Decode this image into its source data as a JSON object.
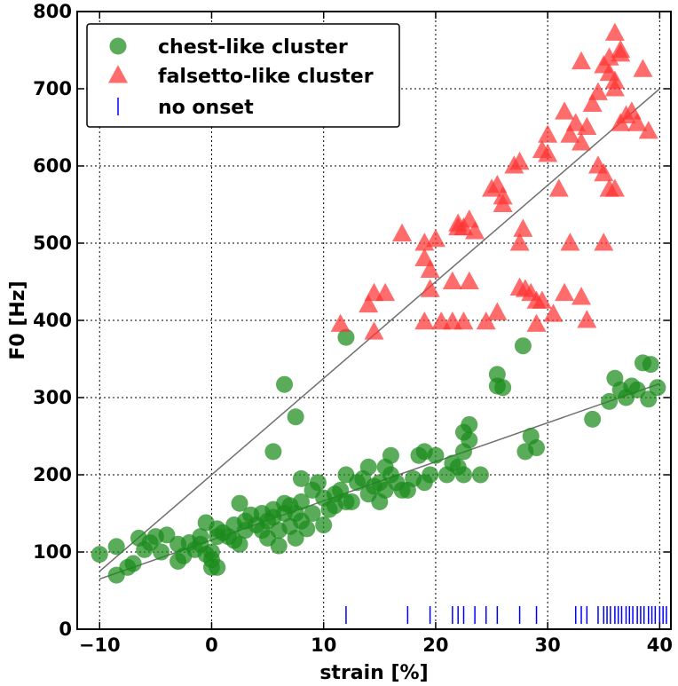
{
  "chart_data": {
    "type": "scatter",
    "xlabel": "strain [%]",
    "ylabel": "F0 [Hz]",
    "xlim": [
      -12,
      41
    ],
    "ylim": [
      0,
      800
    ],
    "xticks": [
      -10,
      0,
      10,
      20,
      30,
      40
    ],
    "yticks": [
      0,
      100,
      200,
      300,
      400,
      500,
      600,
      700,
      800
    ],
    "grid": true,
    "legend_position": "top-left",
    "series": [
      {
        "name": "chest-like cluster",
        "marker": "circle",
        "color": "#1a8a1a",
        "points": [
          [
            -10,
            97
          ],
          [
            -8.5,
            107
          ],
          [
            -8.5,
            70
          ],
          [
            -7.5,
            80
          ],
          [
            -7,
            85
          ],
          [
            -6.5,
            118
          ],
          [
            -6,
            103
          ],
          [
            -5.5,
            112
          ],
          [
            -5,
            120
          ],
          [
            -4.5,
            100
          ],
          [
            -4,
            122
          ],
          [
            -3,
            88
          ],
          [
            -3,
            110
          ],
          [
            -2.5,
            95
          ],
          [
            -2,
            112
          ],
          [
            -1.5,
            103
          ],
          [
            -1,
            110
          ],
          [
            -1,
            120
          ],
          [
            -0.5,
            97
          ],
          [
            -0.5,
            138
          ],
          [
            0,
            80
          ],
          [
            0,
            90
          ],
          [
            0,
            100
          ],
          [
            0.5,
            120
          ],
          [
            0.5,
            130
          ],
          [
            0.5,
            80
          ],
          [
            1,
            125
          ],
          [
            1.5,
            120
          ],
          [
            2,
            115
          ],
          [
            2,
            135
          ],
          [
            2.5,
            163
          ],
          [
            2.5,
            110
          ],
          [
            3,
            128
          ],
          [
            3,
            140
          ],
          [
            3.5,
            148
          ],
          [
            4,
            135
          ],
          [
            4.5,
            128
          ],
          [
            4.5,
            150
          ],
          [
            5,
            118
          ],
          [
            5,
            140
          ],
          [
            5.5,
            145
          ],
          [
            5.5,
            155
          ],
          [
            6,
            108
          ],
          [
            6,
            128
          ],
          [
            6.5,
            150
          ],
          [
            6.5,
            163
          ],
          [
            6.5,
            317
          ],
          [
            7,
            133
          ],
          [
            7,
            160
          ],
          [
            7.5,
            118
          ],
          [
            7.5,
            150
          ],
          [
            7.5,
            275
          ],
          [
            8,
            140
          ],
          [
            8,
            165
          ],
          [
            8,
            195
          ],
          [
            8.5,
            130
          ],
          [
            9,
            150
          ],
          [
            9,
            180
          ],
          [
            9.5,
            190
          ],
          [
            10,
            135
          ],
          [
            10,
            170
          ],
          [
            10.5,
            155
          ],
          [
            11,
            160
          ],
          [
            11,
            175
          ],
          [
            11.5,
            180
          ],
          [
            12,
            165
          ],
          [
            12,
            200
          ],
          [
            12,
            378
          ],
          [
            12.5,
            165
          ],
          [
            13,
            190
          ],
          [
            13.5,
            195
          ],
          [
            14,
            175
          ],
          [
            14,
            210
          ],
          [
            14.5,
            185
          ],
          [
            15,
            165
          ],
          [
            15,
            190
          ],
          [
            15.5,
            180
          ],
          [
            15.5,
            210
          ],
          [
            16,
            200
          ],
          [
            16,
            225
          ],
          [
            16.5,
            190
          ],
          [
            17,
            180
          ],
          [
            17.5,
            180
          ],
          [
            18,
            195
          ],
          [
            18.5,
            225
          ],
          [
            19,
            190
          ],
          [
            19,
            230
          ],
          [
            19.5,
            200
          ],
          [
            20,
            225
          ],
          [
            21,
            200
          ],
          [
            21.5,
            215
          ],
          [
            22,
            210
          ],
          [
            22.5,
            230
          ],
          [
            22.5,
            200
          ],
          [
            22.5,
            255
          ],
          [
            23,
            245
          ],
          [
            23,
            265
          ],
          [
            24,
            200
          ],
          [
            25.5,
            315
          ],
          [
            25.5,
            330
          ],
          [
            26,
            313
          ],
          [
            5.5,
            230
          ],
          [
            27.8,
            367
          ],
          [
            28,
            230
          ],
          [
            28.5,
            250
          ],
          [
            29,
            235
          ],
          [
            34,
            272
          ],
          [
            35.5,
            295
          ],
          [
            36,
            325
          ],
          [
            36.5,
            310
          ],
          [
            37,
            300
          ],
          [
            37.5,
            315
          ],
          [
            38,
            310
          ],
          [
            38.5,
            345
          ],
          [
            39,
            298
          ],
          [
            39.2,
            343
          ],
          [
            39.8,
            313
          ]
        ]
      },
      {
        "name": "falsetto-like cluster",
        "marker": "triangle",
        "color": "#ff3333",
        "points": [
          [
            11.5,
            395
          ],
          [
            14,
            420
          ],
          [
            14.5,
            385
          ],
          [
            14.5,
            435
          ],
          [
            15.5,
            435
          ],
          [
            17,
            512
          ],
          [
            19,
            398
          ],
          [
            19,
            480
          ],
          [
            19,
            500
          ],
          [
            19.5,
            465
          ],
          [
            19.5,
            440
          ],
          [
            20,
            505
          ],
          [
            20.5,
            398
          ],
          [
            21.5,
            398
          ],
          [
            21.5,
            450
          ],
          [
            22,
            520
          ],
          [
            22,
            525
          ],
          [
            22.5,
            398
          ],
          [
            22.5,
            520
          ],
          [
            23,
            450
          ],
          [
            23,
            530
          ],
          [
            23.5,
            515
          ],
          [
            24.5,
            398
          ],
          [
            25,
            570
          ],
          [
            25.5,
            575
          ],
          [
            25.5,
            410
          ],
          [
            26,
            550
          ],
          [
            26,
            560
          ],
          [
            27,
            600
          ],
          [
            27.5,
            605
          ],
          [
            27.5,
            500
          ],
          [
            27.8,
            518
          ],
          [
            27.5,
            442
          ],
          [
            28,
            440
          ],
          [
            28.5,
            435
          ],
          [
            29,
            425
          ],
          [
            29,
            395
          ],
          [
            29.5,
            620
          ],
          [
            29.5,
            425
          ],
          [
            30,
            640
          ],
          [
            30,
            615
          ],
          [
            30.5,
            408
          ],
          [
            31,
            570
          ],
          [
            31.5,
            670
          ],
          [
            31.5,
            435
          ],
          [
            32,
            640
          ],
          [
            32,
            500
          ],
          [
            32.5,
            655
          ],
          [
            33,
            630
          ],
          [
            33,
            735
          ],
          [
            33.5,
            650
          ],
          [
            34,
            680
          ],
          [
            34.5,
            695
          ],
          [
            34.5,
            600
          ],
          [
            35,
            590
          ],
          [
            35,
            730
          ],
          [
            35.5,
            720
          ],
          [
            35.5,
            740
          ],
          [
            36,
            700
          ],
          [
            36,
            710
          ],
          [
            36.5,
            655
          ],
          [
            36.5,
            745
          ],
          [
            37,
            665
          ],
          [
            36,
            772
          ],
          [
            36.5,
            750
          ],
          [
            35.5,
            570
          ],
          [
            36,
            570
          ],
          [
            37.5,
            670
          ],
          [
            38,
            655
          ],
          [
            38.5,
            725
          ],
          [
            39,
            645
          ],
          [
            35,
            500
          ],
          [
            33.5,
            400
          ],
          [
            33,
            430
          ]
        ]
      },
      {
        "name": "no onset",
        "marker": "vline",
        "color": "#0000ff",
        "x": [
          12,
          17.5,
          19.5,
          21.5,
          22,
          22.5,
          23.5,
          24.5,
          25.5,
          27.5,
          29,
          32.5,
          33,
          33.5,
          34.5,
          35,
          35.3,
          35.6,
          36,
          36.3,
          36.6,
          37,
          37.3,
          37.6,
          38,
          38.3,
          38.6,
          39,
          39.3,
          39.6,
          40,
          40.3,
          40.6
        ]
      }
    ],
    "fit_lines": [
      {
        "x": [
          -10,
          40
        ],
        "y": [
          75,
          700
        ],
        "color": "#707070"
      },
      {
        "x": [
          -10,
          40
        ],
        "y": [
          65,
          318
        ],
        "color": "#707070"
      }
    ]
  }
}
